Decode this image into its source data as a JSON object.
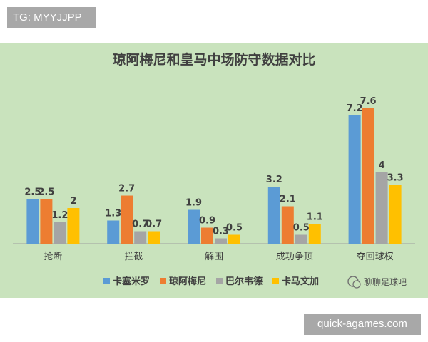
{
  "tg_label": "TG: MYYJJPP",
  "site_label": "quick-agames.com",
  "watermark": "聊聊足球吧",
  "colors": {
    "panel": "#c9e3bd",
    "axis": "#a0a0a0",
    "text": "#404040"
  },
  "chart_data": {
    "type": "bar",
    "title": "琼阿梅尼和皇马中场防守数据对比",
    "xlabel": "",
    "ylabel": "",
    "ylim": [
      0,
      8
    ],
    "grid": false,
    "legend_position": "bottom",
    "categories": [
      "抢断",
      "拦截",
      "解围",
      "成功争顶",
      "夺回球权"
    ],
    "series": [
      {
        "name": "卡塞米罗",
        "color": "#5b9bd5",
        "values": [
          2.5,
          1.3,
          1.9,
          3.2,
          7.2
        ],
        "labels": [
          "2.5",
          "1.3",
          "1.9",
          "3.2",
          "7.2"
        ]
      },
      {
        "name": "琼阿梅尼",
        "color": "#ed7d31",
        "values": [
          2.5,
          2.7,
          0.9,
          2.1,
          7.6
        ],
        "labels": [
          "2.5",
          "2.7",
          "0.9",
          "2.1",
          "7.6"
        ]
      },
      {
        "name": "巴尔韦德",
        "color": "#a5a5a5",
        "values": [
          1.2,
          0.7,
          0.3,
          0.5,
          4
        ],
        "labels": [
          "1.2",
          "0.7",
          "0.3",
          "0.5",
          "4"
        ]
      },
      {
        "name": "卡马文加",
        "color": "#ffc000",
        "values": [
          2,
          0.7,
          0.5,
          1.1,
          3.3
        ],
        "labels": [
          "2",
          "0.7",
          "0.5",
          "1.1",
          "3.3"
        ]
      }
    ]
  }
}
